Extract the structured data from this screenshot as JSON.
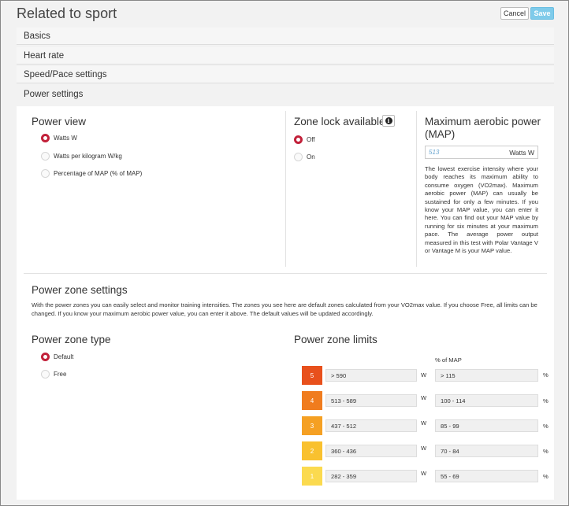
{
  "header": {
    "title": "Related to sport",
    "cancel_label": "Cancel",
    "save_label": "Save"
  },
  "sections": {
    "basics": "Basics",
    "heart_rate": "Heart rate",
    "speed_pace": "Speed/Pace settings",
    "power": "Power settings"
  },
  "power_view": {
    "title": "Power view",
    "options": [
      {
        "label": "Watts W",
        "selected": true
      },
      {
        "label": "Watts per kilogram W/kg",
        "selected": false
      },
      {
        "label": "Percentage of MAP (% of MAP)",
        "selected": false
      }
    ]
  },
  "zone_lock": {
    "title": "Zone lock available",
    "info_icon": "info-icon",
    "options": [
      {
        "label": "Off",
        "selected": true
      },
      {
        "label": "On",
        "selected": false
      }
    ]
  },
  "map": {
    "title_line1": "Maximum aerobic power",
    "title_line2": "(MAP)",
    "value": "513",
    "unit": "Watts W",
    "description": "The lowest exercise intensity where your body reaches its maximum ability to consume oxygen (VO2max). Maximum aerobic power (MAP) can usually be sustained for only a few minutes. If you know your MAP value, you can enter it here. You can find out your MAP value by running for six minutes at your maximum pace. The average power output measured in this test with Polar Vantage V or Vantage M is your MAP value."
  },
  "zone_settings": {
    "title": "Power zone settings",
    "description": "With the power zones you can easily select and monitor training intensities. The zones you see here are default zones calculated from your VO2max value. If you choose Free, all limits can be changed. If you know your maximum aerobic power value, you can enter it above. The default values will be updated accordingly."
  },
  "zone_type": {
    "title": "Power zone type",
    "options": [
      {
        "label": "Default",
        "selected": true
      },
      {
        "label": "Free",
        "selected": false
      }
    ]
  },
  "zone_limits": {
    "title": "Power zone limits",
    "pct_header": "% of MAP",
    "watt_unit": "W",
    "pct_unit": "%",
    "zones": [
      {
        "num": "5",
        "watts": "> 590",
        "pct": "> 115",
        "color": "#e8501c"
      },
      {
        "num": "4",
        "watts": "513 - 589",
        "pct": "100 - 114",
        "color": "#f07c1e"
      },
      {
        "num": "3",
        "watts": "437 - 512",
        "pct": "85 - 99",
        "color": "#f5a023"
      },
      {
        "num": "2",
        "watts": "360 - 436",
        "pct": "70 - 84",
        "color": "#f9c12f"
      },
      {
        "num": "1",
        "watts": "282 - 359",
        "pct": "55 - 69",
        "color": "#fbda4f"
      }
    ]
  }
}
